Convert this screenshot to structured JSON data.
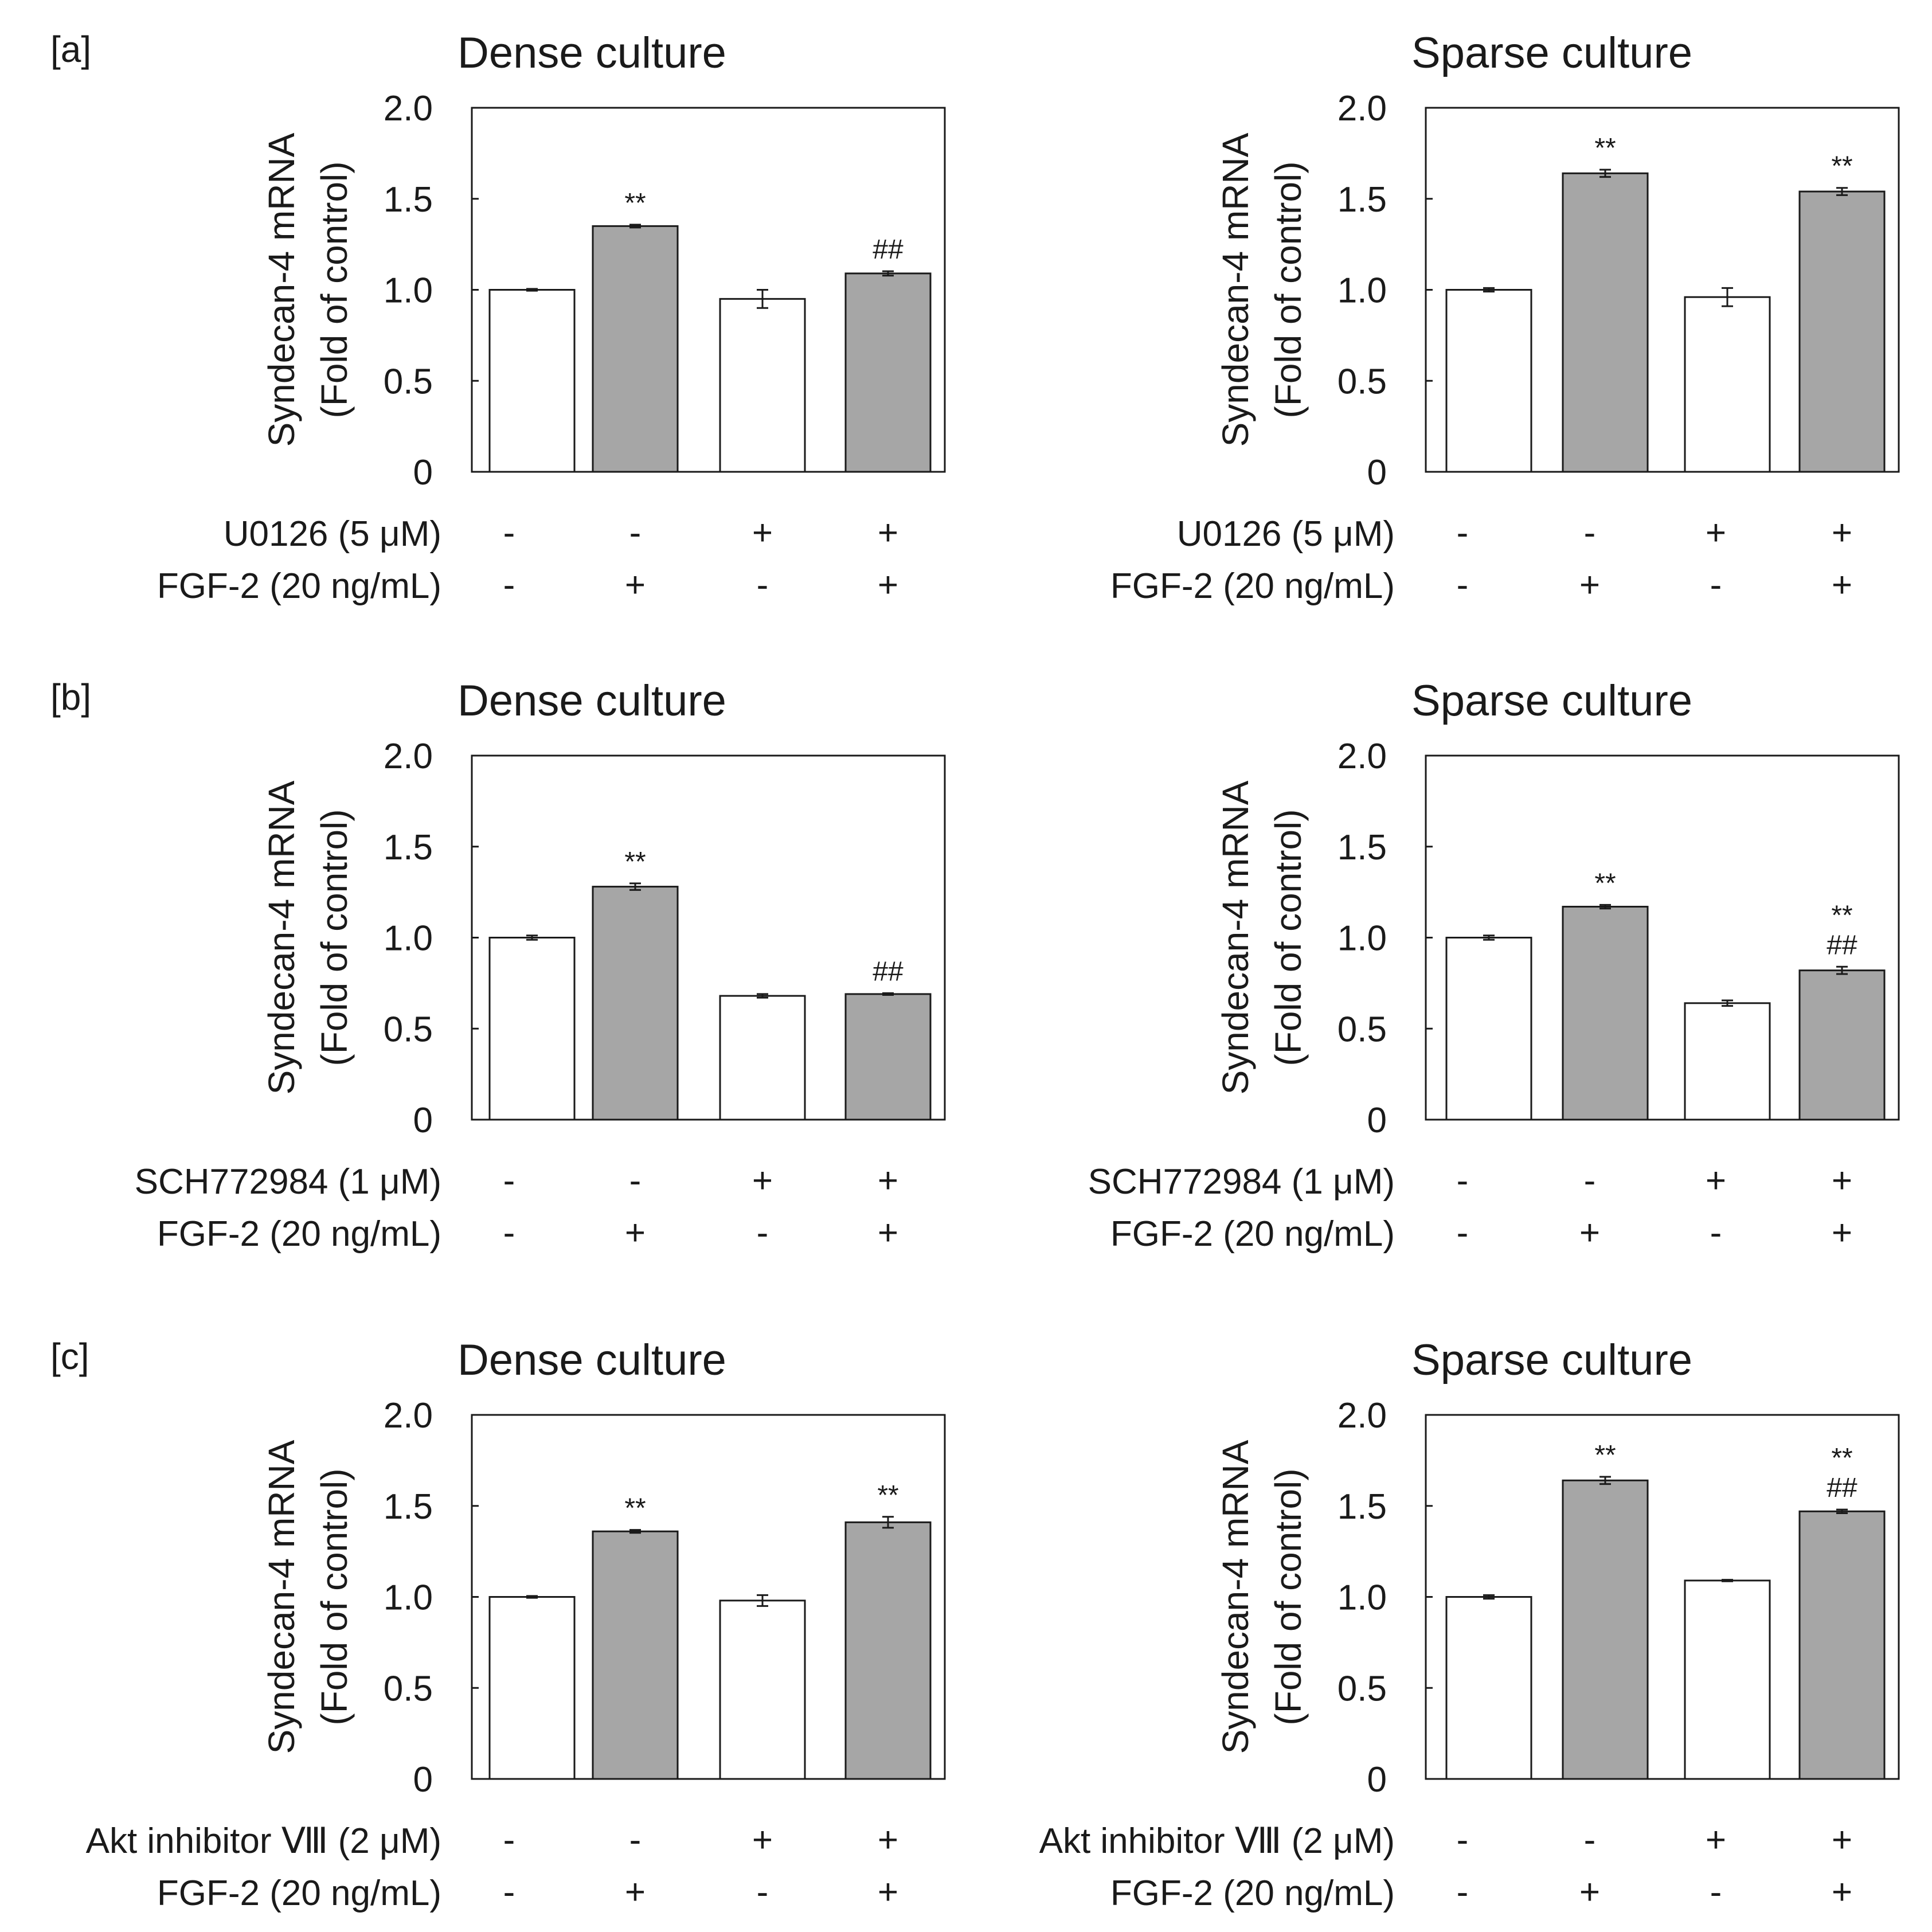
{
  "figure": {
    "rows": [
      {
        "letter": "[a]",
        "condition_labels": [
          "U0126 (5 μM)",
          "FGF-2 (20 ng/mL)"
        ],
        "condition_signs": [
          [
            "-",
            "-",
            "+",
            "+"
          ],
          [
            "-",
            "+",
            "-",
            "+"
          ]
        ]
      },
      {
        "letter": "[b]",
        "condition_labels": [
          "SCH772984 (1 μM)",
          "FGF-2 (20 ng/mL)"
        ],
        "condition_signs": [
          [
            "-",
            "-",
            "+",
            "+"
          ],
          [
            "-",
            "+",
            "-",
            "+"
          ]
        ]
      },
      {
        "letter": "[c]",
        "condition_labels": [
          "Akt inhibitor Ⅷ (2 μM)",
          "FGF-2 (20 ng/mL)"
        ],
        "condition_signs": [
          [
            "-",
            "-",
            "+",
            "+"
          ],
          [
            "-",
            "+",
            "-",
            "+"
          ]
        ]
      }
    ]
  },
  "colors": {
    "control_bar": "#ffffff",
    "fgf_bar": "#a6a6a6",
    "outline": "#1a1a1a"
  },
  "chart_data": [
    {
      "type": "bar",
      "panel": "a",
      "title": "Dense culture",
      "ylabel": [
        "Syndecan-4 mRNA",
        "(Fold of control)"
      ],
      "ylim": [
        0,
        2.0
      ],
      "yticks": [
        "0",
        "0.5",
        "1.0",
        "1.5",
        "2.0"
      ],
      "values": [
        1.0,
        1.35,
        0.95,
        1.09
      ],
      "errors": [
        0.005,
        0.008,
        0.05,
        0.012
      ],
      "annotations": [
        "",
        "**",
        "",
        "##"
      ]
    },
    {
      "type": "bar",
      "panel": "a",
      "title": "Sparse culture",
      "ylabel": [
        "Syndecan-4 mRNA",
        "(Fold of control)"
      ],
      "ylim": [
        0,
        2.0
      ],
      "yticks": [
        "0",
        "0.5",
        "1.0",
        "1.5",
        "2.0"
      ],
      "values": [
        1.0,
        1.64,
        0.96,
        1.54
      ],
      "errors": [
        0.01,
        0.02,
        0.05,
        0.02
      ],
      "annotations": [
        "",
        "**",
        "",
        "**"
      ]
    },
    {
      "type": "bar",
      "panel": "b",
      "title": "Dense culture",
      "ylabel": [
        "Syndecan-4 mRNA",
        "(Fold of control)"
      ],
      "ylim": [
        0,
        2.0
      ],
      "yticks": [
        "0",
        "0.5",
        "1.0",
        "1.5",
        "2.0"
      ],
      "values": [
        1.0,
        1.28,
        0.68,
        0.69
      ],
      "errors": [
        0.012,
        0.018,
        0.01,
        0.005
      ],
      "annotations": [
        "",
        "**",
        "",
        "##"
      ]
    },
    {
      "type": "bar",
      "panel": "b",
      "title": "Sparse culture",
      "ylabel": [
        "Syndecan-4 mRNA",
        "(Fold of control)"
      ],
      "ylim": [
        0,
        2.0
      ],
      "yticks": [
        "0",
        "0.5",
        "1.0",
        "1.5",
        "2.0"
      ],
      "values": [
        1.0,
        1.17,
        0.64,
        0.82
      ],
      "errors": [
        0.012,
        0.01,
        0.015,
        0.02
      ],
      "annotations": [
        "",
        "**",
        "",
        "**\n##"
      ]
    },
    {
      "type": "bar",
      "panel": "c",
      "title": "Dense culture",
      "ylabel": [
        "Syndecan-4 mRNA",
        "(Fold of control)"
      ],
      "ylim": [
        0,
        2.0
      ],
      "yticks": [
        "0",
        "0.5",
        "1.0",
        "1.5",
        "2.0"
      ],
      "values": [
        1.0,
        1.36,
        0.98,
        1.41
      ],
      "errors": [
        0.005,
        0.008,
        0.03,
        0.03
      ],
      "annotations": [
        "",
        "**",
        "",
        "**"
      ]
    },
    {
      "type": "bar",
      "panel": "c",
      "title": "Sparse culture",
      "ylabel": [
        "Syndecan-4 mRNA",
        "(Fold of control)"
      ],
      "ylim": [
        0,
        2.0
      ],
      "yticks": [
        "0",
        "0.5",
        "1.0",
        "1.5",
        "2.0"
      ],
      "values": [
        1.0,
        1.64,
        1.09,
        1.47
      ],
      "errors": [
        0.01,
        0.02,
        0.004,
        0.01
      ],
      "annotations": [
        "",
        "**",
        "",
        "**\n##"
      ]
    }
  ]
}
